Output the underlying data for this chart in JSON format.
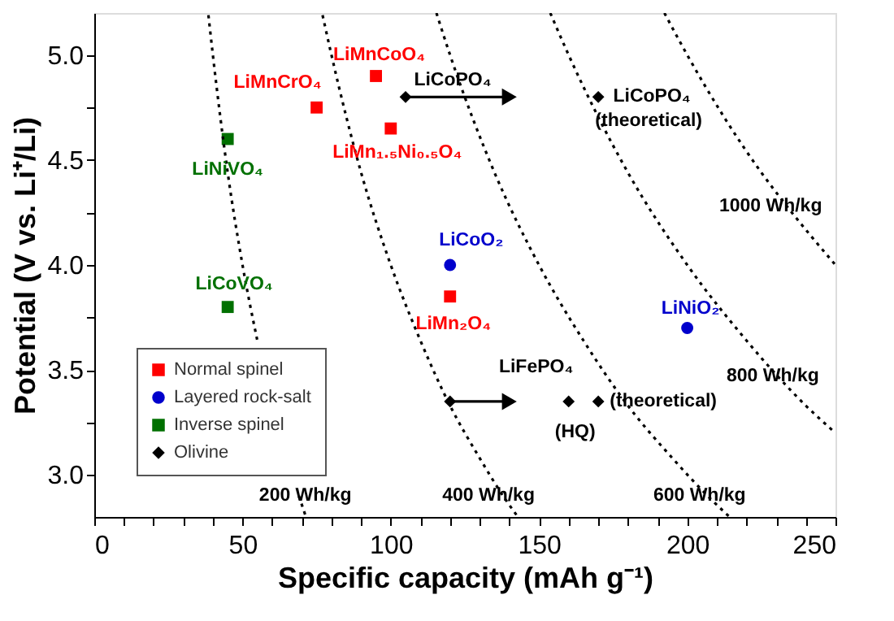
{
  "chart_data": {
    "type": "scatter",
    "xlabel": "Specific capacity (mAh g⁻¹)",
    "ylabel": "Potential (V vs. Li⁺/Li)",
    "xlim": [
      0,
      250
    ],
    "ylim": [
      2.8,
      5.2
    ],
    "xticks": [
      0,
      {
        "value": 10,
        "label": null
      },
      {
        "value": 20,
        "label": null
      },
      {
        "value": 30,
        "label": null
      },
      {
        "value": 40,
        "label": null
      },
      50,
      {
        "value": 60,
        "label": null
      },
      {
        "value": 70,
        "label": null
      },
      {
        "value": 80,
        "label": null
      },
      {
        "value": 90,
        "label": null
      },
      100,
      {
        "value": 110,
        "label": null
      },
      {
        "value": 120,
        "label": null
      },
      {
        "value": 130,
        "label": null
      },
      {
        "value": 140,
        "label": null
      },
      150,
      {
        "value": 160,
        "label": null
      },
      {
        "value": 170,
        "label": null
      },
      {
        "value": 180,
        "label": null
      },
      {
        "value": 190,
        "label": null
      },
      200,
      {
        "value": 210,
        "label": null
      },
      {
        "value": 220,
        "label": null
      },
      {
        "value": 230,
        "label": null
      },
      {
        "value": 240,
        "label": null
      },
      250
    ],
    "yticks": [
      {
        "value": 3,
        "label": "3.0"
      },
      {
        "value": 3.25,
        "label": null
      },
      3.5,
      {
        "value": 3.75,
        "label": null
      },
      {
        "value": 4,
        "label": "4.0"
      },
      {
        "value": 4.25,
        "label": null
      },
      4.5,
      {
        "value": 4.75,
        "label": null
      },
      {
        "value": 5,
        "label": "5.0"
      }
    ],
    "grid": false,
    "legend": "bottom left",
    "series": [
      {
        "name": "Normal spinel",
        "color": "#ff0000",
        "marker": "square",
        "x": [
          75,
          95,
          100,
          120
        ],
        "values": [
          4.75,
          4.9,
          4.65,
          3.85
        ]
      },
      {
        "name": "Layered rock-salt",
        "color": "#0000cc",
        "marker": "circle",
        "x": [
          120,
          200
        ],
        "values": [
          4.0,
          3.7
        ]
      },
      {
        "name": "Inverse spinel",
        "color": "#007000",
        "marker": "square",
        "x": [
          45,
          45
        ],
        "values": [
          4.6,
          3.8
        ]
      },
      {
        "name": "Olivine",
        "color": "#000000",
        "marker": "diamond",
        "x": [
          105,
          170,
          120,
          160,
          170
        ],
        "values": [
          4.8,
          4.8,
          3.35,
          3.35,
          3.35
        ]
      },
      {
        "type": "line",
        "color": "#000000",
        "line_style": "dotted",
        "marker": "none",
        "x": [
          38.5,
          40,
          45,
          50,
          55,
          60,
          65,
          69,
          71.4
        ],
        "values": [
          5.19,
          5.0,
          4.44,
          4.0,
          3.64,
          null,
          null,
          2.9,
          2.8
        ]
      },
      {
        "type": "line",
        "color": "#000000",
        "line_style": "dotted",
        "marker": "none",
        "x": [
          77,
          80,
          90,
          100,
          110,
          120,
          130,
          137.9,
          142.9
        ],
        "values": [
          5.19,
          5.0,
          4.44,
          4.0,
          3.64,
          3.33,
          3.08,
          2.9,
          2.8
        ]
      },
      {
        "type": "line",
        "color": "#000000",
        "line_style": "dotted",
        "marker": "none",
        "x": [
          115.4,
          120,
          135,
          150,
          165,
          180,
          195,
          206.9,
          214.3
        ],
        "values": [
          5.2,
          5.0,
          4.44,
          4.0,
          3.64,
          3.33,
          3.08,
          2.9,
          2.8
        ]
      },
      {
        "type": "line",
        "color": "#000000",
        "line_style": "dotted",
        "marker": "none",
        "x": [
          153.8,
          160,
          180,
          200,
          220,
          230.5,
          240,
          250
        ],
        "values": [
          5.2,
          5.0,
          4.44,
          4.0,
          3.64,
          3.47,
          3.33,
          3.2
        ]
      },
      {
        "type": "line",
        "color": "#000000",
        "line_style": "dotted",
        "marker": "none",
        "x": [
          192.3,
          200,
          225,
          233.6,
          250
        ],
        "values": [
          5.2,
          5.0,
          4.44,
          4.28,
          4.0
        ]
      },
      {
        "type": "line",
        "color": "#000000",
        "line_style": "solid",
        "marker": "triangle",
        "x": [
          105,
          140
        ],
        "values": [
          4.8,
          4.8
        ]
      },
      {
        "type": "line",
        "color": "#000000",
        "line_style": "solid",
        "marker": "triangle",
        "x": [
          120,
          140
        ],
        "values": [
          3.35,
          3.35
        ]
      }
    ],
    "annotations": [
      {
        "text": "LiMnCrO₄",
        "x": 75,
        "y": 4.75
      },
      {
        "text": "LiMnCoO₄",
        "x": 95,
        "y": 4.9
      },
      {
        "text": "LiMn₁.₅Ni₀.₅O₄",
        "x": 100,
        "y": 4.65
      },
      {
        "text": "LiCoPO₄",
        "x": 105,
        "y": 4.8
      },
      {
        "text": "LiCoPO₄",
        "x": 170,
        "y": 4.8
      },
      {
        "text": "(theoretical)",
        "x": 170,
        "y": 4.8
      },
      {
        "text": "1000 Wh/kg",
        "x": 233.6,
        "y": 4.28
      },
      {
        "text": "LiCoO₂",
        "x": 120,
        "y": 4.0
      },
      {
        "text": "LiNiVO₄",
        "x": 45,
        "y": 4.6
      },
      {
        "text": "LiCoVO₄",
        "x": 45,
        "y": 3.8
      },
      {
        "text": "LiMn₂O₄",
        "x": 120,
        "y": 3.85
      },
      {
        "text": "LiNiO₂",
        "x": 200,
        "y": 3.7
      },
      {
        "text": "800 Wh/kg",
        "x": 230.5,
        "y": 3.47
      },
      {
        "text": "LiFePO₄",
        "x": 160,
        "y": 3.35
      },
      {
        "text": "(theoretical)",
        "x": 170,
        "y": 3.35
      },
      {
        "text": "(HQ)",
        "x": 160,
        "y": 3.35
      },
      {
        "text": "200 Wh/kg",
        "x": 69,
        "y": 2.9
      },
      {
        "text": "400 Wh/kg",
        "x": 137.9,
        "y": 2.9
      },
      {
        "text": "600 Wh/kg",
        "x": 206.9,
        "y": 2.9
      }
    ]
  }
}
